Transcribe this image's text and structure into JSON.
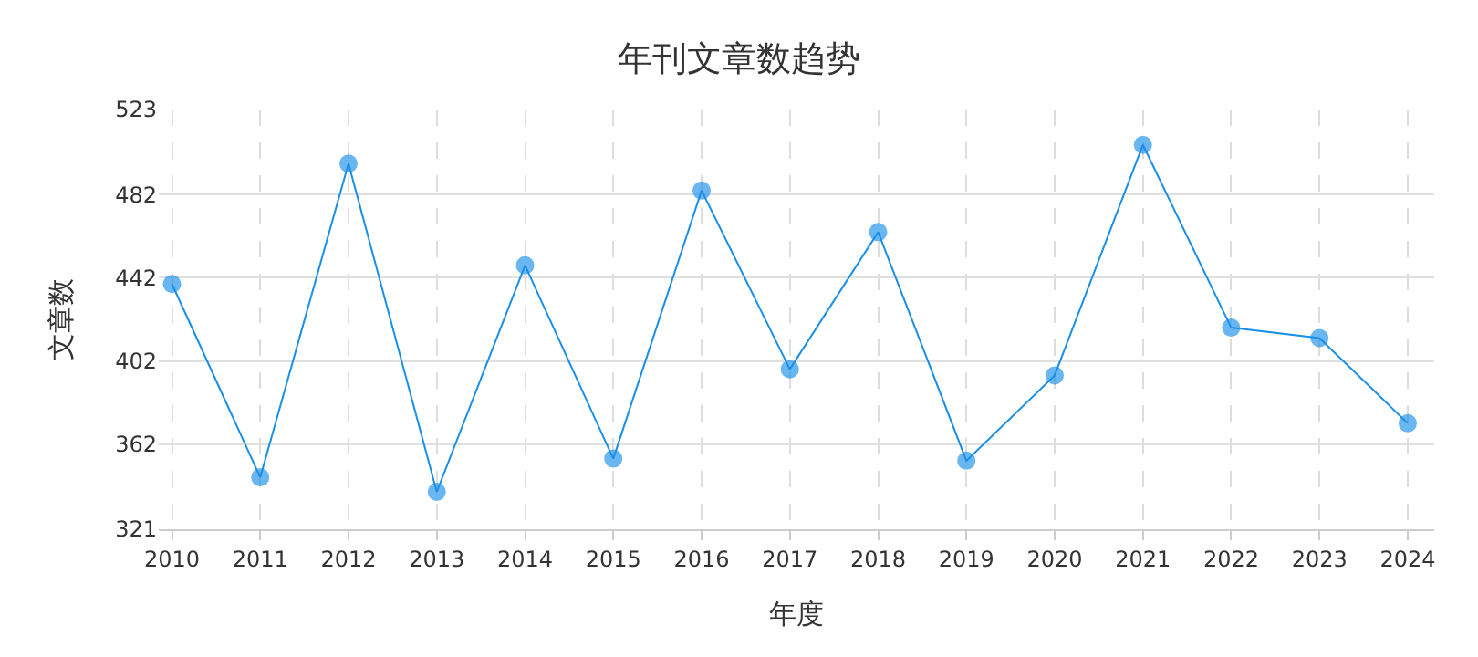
{
  "chart_data": {
    "type": "line",
    "title": "年刊文章数趋势",
    "xlabel": "年度",
    "ylabel": "文章数",
    "categories": [
      "2010",
      "2011",
      "2012",
      "2013",
      "2014",
      "2015",
      "2016",
      "2017",
      "2018",
      "2019",
      "2020",
      "2021",
      "2022",
      "2023",
      "2024"
    ],
    "series": [
      {
        "color": "#1a8fe8",
        "values": [
          439,
          346,
          497,
          339,
          448,
          355,
          484,
          398,
          464,
          354,
          395,
          506,
          418,
          413,
          372
        ]
      }
    ],
    "ylim": [
      321,
      523
    ],
    "yticks": [
      321,
      362,
      402,
      442,
      482,
      523
    ],
    "grid": true,
    "marker": "circle",
    "line_style": "solid",
    "legend": false
  }
}
